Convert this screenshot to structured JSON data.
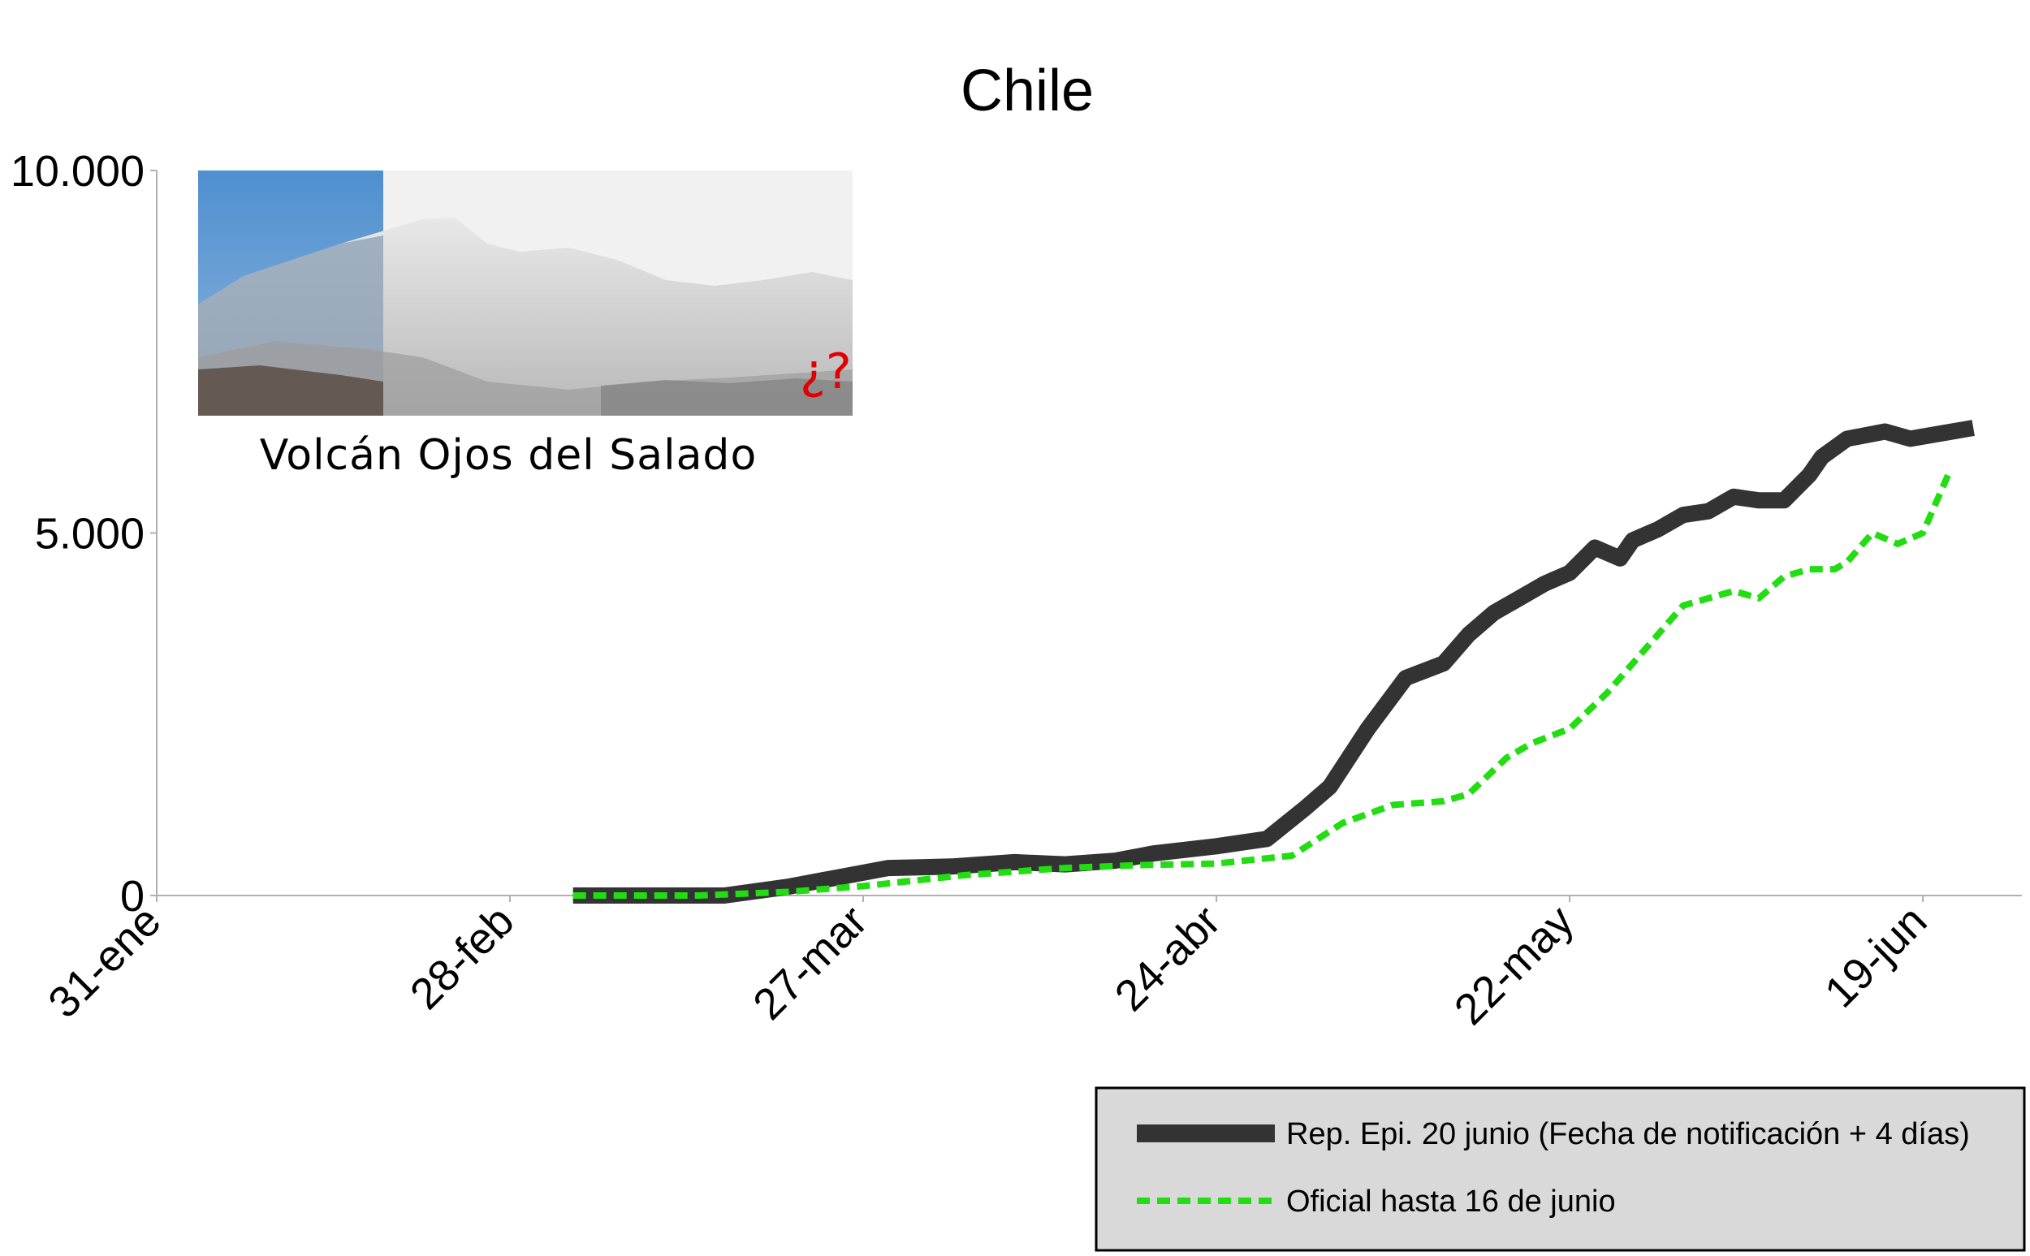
{
  "chart_data": {
    "type": "line",
    "title": "Chile",
    "xlabel": "",
    "ylabel": "",
    "x_ticks": [
      "31-ene",
      "28-feb",
      "27-mar",
      "24-abr",
      "22-may",
      "19-jun"
    ],
    "y_ticks": [
      "0",
      "5.000",
      "10.000"
    ],
    "ylim": [
      0,
      10000
    ],
    "xlim": [
      "2020-01-31",
      "2020-07-10"
    ],
    "grid": false,
    "legend_position": "bottom-right",
    "inset": {
      "caption": "Volcán Ojos del Salado",
      "mark": "¿?"
    },
    "series": [
      {
        "name": "Rep. Epi. 20 junio (Fecha de notificación + 4 días)",
        "color": "#333333",
        "style": "solid-thick",
        "x": [
          "2020-03-04",
          "2020-03-10",
          "2020-03-16",
          "2020-03-21",
          "2020-03-25",
          "2020-03-29",
          "2020-04-03",
          "2020-04-08",
          "2020-04-12",
          "2020-04-16",
          "2020-04-19",
          "2020-04-24",
          "2020-04-28",
          "2020-05-01",
          "2020-05-03",
          "2020-05-06",
          "2020-05-09",
          "2020-05-12",
          "2020-05-14",
          "2020-05-16",
          "2020-05-18",
          "2020-05-20",
          "2020-05-22",
          "2020-05-24",
          "2020-05-26",
          "2020-05-27",
          "2020-05-29",
          "2020-05-31",
          "2020-06-02",
          "2020-06-04",
          "2020-06-06",
          "2020-06-08",
          "2020-06-10",
          "2020-06-11",
          "2020-06-13",
          "2020-06-16",
          "2020-06-18",
          "2020-06-23"
        ],
        "y": [
          0,
          0,
          0,
          120,
          250,
          380,
          400,
          460,
          430,
          480,
          580,
          680,
          780,
          1200,
          1500,
          2300,
          3000,
          3200,
          3600,
          3900,
          4100,
          4300,
          4450,
          4800,
          4650,
          4900,
          5050,
          5250,
          5300,
          5500,
          5450,
          5450,
          5800,
          6050,
          6300,
          6400,
          6300,
          6450
        ]
      },
      {
        "name": "Oficial hasta 16 de junio",
        "color": "#22dd11",
        "style": "dashed",
        "x": [
          "2020-03-04",
          "2020-03-14",
          "2020-03-21",
          "2020-03-27",
          "2020-04-04",
          "2020-04-12",
          "2020-04-18",
          "2020-04-24",
          "2020-04-30",
          "2020-05-04",
          "2020-05-08",
          "2020-05-12",
          "2020-05-14",
          "2020-05-17",
          "2020-05-19",
          "2020-05-22",
          "2020-05-25",
          "2020-05-27",
          "2020-05-31",
          "2020-06-02",
          "2020-06-04",
          "2020-06-06",
          "2020-06-08",
          "2020-06-10",
          "2020-06-12",
          "2020-06-13",
          "2020-06-15",
          "2020-06-17",
          "2020-06-19",
          "2020-06-21"
        ],
        "y": [
          0,
          0,
          50,
          130,
          280,
          380,
          420,
          440,
          550,
          1000,
          1250,
          1300,
          1400,
          1900,
          2100,
          2300,
          2800,
          3200,
          4000,
          4100,
          4200,
          4100,
          4400,
          4500,
          4500,
          4600,
          5000,
          4850,
          5000,
          5800
        ]
      }
    ]
  }
}
